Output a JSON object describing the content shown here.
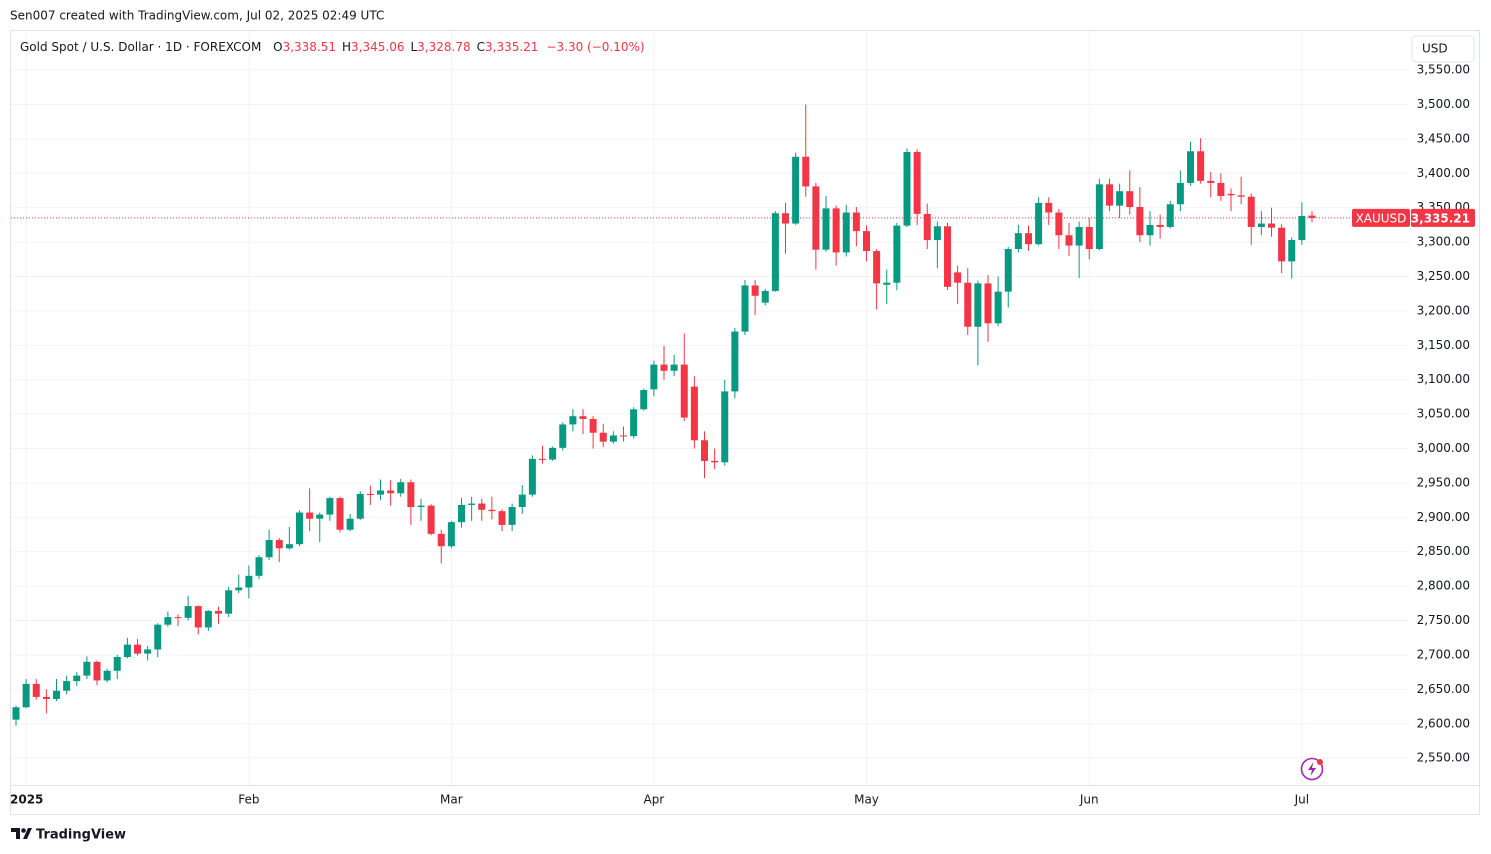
{
  "credit": "Sen007 created with TradingView.com, Jul 02, 2025 02:49 UTC",
  "legend": {
    "symbol": "Gold Spot / U.S. Dollar · 1D · FOREXCOM",
    "fields": [
      {
        "key": "O",
        "value": "3,338.51"
      },
      {
        "key": "H",
        "value": "3,345.06"
      },
      {
        "key": "L",
        "value": "3,328.78"
      },
      {
        "key": "C",
        "value": "3,335.21"
      }
    ],
    "change": "−3.30 (−0.10%)"
  },
  "currency": "USD",
  "brand": "TradingView",
  "chart_data": {
    "type": "candlestick",
    "up_color": "#089981",
    "down_color": "#f23645",
    "grid": true,
    "ylim": [
      2511,
      3601
    ],
    "yticks": [
      {
        "value": 2550,
        "label": "2,550.00"
      },
      {
        "value": 2600,
        "label": "2,600.00"
      },
      {
        "value": 2650,
        "label": "2,650.00"
      },
      {
        "value": 2700,
        "label": "2,700.00"
      },
      {
        "value": 2750,
        "label": "2,750.00"
      },
      {
        "value": 2800,
        "label": "2,800.00"
      },
      {
        "value": 2850,
        "label": "2,850.00"
      },
      {
        "value": 2900,
        "label": "2,900.00"
      },
      {
        "value": 2950,
        "label": "2,950.00"
      },
      {
        "value": 3000,
        "label": "3,000.00"
      },
      {
        "value": 3050,
        "label": "3,050.00"
      },
      {
        "value": 3100,
        "label": "3,100.00"
      },
      {
        "value": 3150,
        "label": "3,150.00"
      },
      {
        "value": 3200,
        "label": "3,200.00"
      },
      {
        "value": 3250,
        "label": "3,250.00"
      },
      {
        "value": 3300,
        "label": "3,300.00"
      },
      {
        "value": 3350,
        "label": "3,350.00"
      },
      {
        "value": 3400,
        "label": "3,400.00"
      },
      {
        "value": 3450,
        "label": "3,450.00"
      },
      {
        "value": 3500,
        "label": "3,500.00"
      },
      {
        "value": 3550,
        "label": "3,550.00"
      }
    ],
    "last_price": {
      "symbol": "XAUUSD",
      "value": 3335.21,
      "label": "3,335.21"
    },
    "categories": [
      null,
      "2025",
      null,
      null,
      null,
      null,
      null,
      null,
      null,
      null,
      null,
      null,
      null,
      null,
      null,
      null,
      null,
      null,
      null,
      null,
      null,
      null,
      null,
      "Feb",
      null,
      null,
      null,
      null,
      null,
      null,
      null,
      null,
      null,
      null,
      null,
      null,
      null,
      null,
      null,
      null,
      null,
      null,
      null,
      "Mar",
      null,
      null,
      null,
      null,
      null,
      null,
      null,
      null,
      null,
      null,
      null,
      null,
      null,
      null,
      null,
      null,
      null,
      null,
      null,
      "Apr",
      null,
      null,
      null,
      null,
      null,
      null,
      null,
      null,
      null,
      null,
      null,
      null,
      null,
      null,
      null,
      null,
      null,
      null,
      null,
      null,
      "May",
      null,
      null,
      null,
      null,
      null,
      null,
      null,
      null,
      null,
      null,
      null,
      null,
      null,
      null,
      null,
      null,
      null,
      null,
      null,
      null,
      null,
      "Jun",
      null,
      null,
      null,
      null,
      null,
      null,
      null,
      null,
      null,
      null,
      null,
      null,
      null,
      null,
      null,
      null,
      null,
      null,
      null,
      null,
      "Jul",
      null
    ],
    "open": [
      2606,
      2624,
      2658,
      2639,
      2636,
      2648,
      2662,
      2670,
      2690,
      2663,
      2677,
      2697,
      2715,
      2702,
      2708,
      2744,
      2755,
      2754,
      2771,
      2740,
      2764,
      2760,
      2794,
      2798,
      2815,
      2842,
      2867,
      2855,
      2861,
      2907,
      2898,
      2904,
      2928,
      2882,
      2898,
      2934,
      2933,
      2939,
      2935,
      2951,
      2915,
      2917,
      2876,
      2858,
      2893,
      2918,
      2920,
      2911,
      2909,
      2889,
      2915,
      2933,
      2985,
      2984,
      3001,
      3035,
      3047,
      3043,
      3023,
      3010,
      3019,
      3018,
      3057,
      3086,
      3122,
      3113,
      3122,
      3090,
      3012,
      2982,
      2980,
      3083,
      3170,
      3237,
      3212,
      3229,
      3342,
      3327,
      3424,
      3381,
      3289,
      3349,
      3285,
      3343,
      3316,
      3287,
      3238,
      3241,
      3324,
      3431,
      3341,
      3303,
      3323,
      3256,
      3241,
      3177,
      3240,
      3182,
      3228,
      3290,
      3313,
      3297,
      3357,
      3343,
      3310,
      3295,
      3322,
      3290,
      3384,
      3353,
      3374,
      3351,
      3310,
      3325,
      3322,
      3355,
      3386,
      3432,
      3389,
      3386,
      3370,
      3368,
      3366,
      3322,
      3327,
      3321,
      3272,
      3303,
      3338.51
    ],
    "high": [
      2626,
      2665,
      2665,
      2650,
      2665,
      2670,
      2675,
      2698,
      2692,
      2680,
      2700,
      2725,
      2723,
      2713,
      2746,
      2763,
      2759,
      2786,
      2772,
      2765,
      2770,
      2799,
      2817,
      2830,
      2845,
      2882,
      2870,
      2886,
      2910,
      2942,
      2907,
      2930,
      2930,
      2905,
      2938,
      2946,
      2955,
      2954,
      2956,
      2955,
      2927,
      2919,
      2882,
      2895,
      2928,
      2930,
      2927,
      2930,
      2912,
      2920,
      2947,
      2990,
      3004,
      3003,
      3038,
      3057,
      3057,
      3047,
      3036,
      3025,
      3032,
      3060,
      3087,
      3128,
      3149,
      3136,
      3167,
      3105,
      3025,
      3000,
      3100,
      3175,
      3245,
      3245,
      3232,
      3345,
      3357,
      3430,
      3500,
      3386,
      3367,
      3353,
      3354,
      3351,
      3324,
      3290,
      3260,
      3328,
      3436,
      3435,
      3356,
      3330,
      3328,
      3266,
      3262,
      3244,
      3252,
      3250,
      3293,
      3325,
      3324,
      3365,
      3365,
      3348,
      3328,
      3330,
      3335,
      3392,
      3392,
      3385,
      3404,
      3380,
      3345,
      3340,
      3360,
      3404,
      3446,
      3451,
      3402,
      3400,
      3378,
      3395,
      3371,
      3345,
      3350,
      3326,
      3307,
      3358,
      3345.06
    ],
    "low": [
      2597,
      2623,
      2635,
      2615,
      2633,
      2643,
      2655,
      2665,
      2656,
      2660,
      2665,
      2695,
      2699,
      2692,
      2697,
      2741,
      2742,
      2750,
      2730,
      2735,
      2745,
      2755,
      2790,
      2782,
      2810,
      2838,
      2835,
      2853,
      2858,
      2880,
      2864,
      2895,
      2878,
      2880,
      2896,
      2918,
      2925,
      2917,
      2930,
      2889,
      2895,
      2874,
      2833,
      2855,
      2885,
      2895,
      2895,
      2897,
      2880,
      2880,
      2905,
      2930,
      2978,
      2982,
      2997,
      3025,
      3021,
      3000,
      3002,
      3007,
      3010,
      3015,
      3055,
      3076,
      3100,
      3105,
      3040,
      3000,
      2957,
      2970,
      2975,
      3073,
      3165,
      3194,
      3208,
      3228,
      3283,
      3325,
      3366,
      3260,
      3286,
      3266,
      3279,
      3294,
      3272,
      3202,
      3210,
      3230,
      3322,
      3325,
      3290,
      3262,
      3230,
      3210,
      3165,
      3121,
      3155,
      3178,
      3205,
      3285,
      3287,
      3295,
      3325,
      3290,
      3280,
      3248,
      3275,
      3288,
      3345,
      3335,
      3340,
      3300,
      3295,
      3305,
      3320,
      3345,
      3382,
      3385,
      3365,
      3360,
      3345,
      3355,
      3296,
      3310,
      3308,
      3255,
      3247,
      3296,
      3328.78
    ],
    "close": [
      2624,
      2658,
      2639,
      2636,
      2648,
      2662,
      2670,
      2690,
      2663,
      2677,
      2697,
      2715,
      2702,
      2708,
      2744,
      2755,
      2754,
      2771,
      2740,
      2764,
      2760,
      2794,
      2798,
      2815,
      2842,
      2867,
      2855,
      2861,
      2907,
      2898,
      2904,
      2928,
      2882,
      2898,
      2934,
      2933,
      2939,
      2935,
      2951,
      2915,
      2917,
      2876,
      2858,
      2893,
      2918,
      2920,
      2911,
      2909,
      2889,
      2915,
      2933,
      2985,
      2984,
      3001,
      3035,
      3047,
      3043,
      3023,
      3010,
      3019,
      3018,
      3057,
      3085,
      3122,
      3113,
      3122,
      3045,
      3012,
      2982,
      2980,
      3083,
      3170,
      3237,
      3222,
      3229,
      3342,
      3327,
      3424,
      3381,
      3289,
      3349,
      3285,
      3343,
      3316,
      3287,
      3240,
      3241,
      3324,
      3431,
      3341,
      3303,
      3323,
      3235,
      3241,
      3177,
      3240,
      3182,
      3228,
      3290,
      3313,
      3297,
      3357,
      3343,
      3310,
      3295,
      3322,
      3290,
      3384,
      3353,
      3374,
      3351,
      3310,
      3325,
      3322,
      3355,
      3386,
      3432,
      3389,
      3386,
      3367,
      3368,
      3366,
      3322,
      3327,
      3321,
      3272,
      3303,
      3338,
      3335.21
    ]
  }
}
